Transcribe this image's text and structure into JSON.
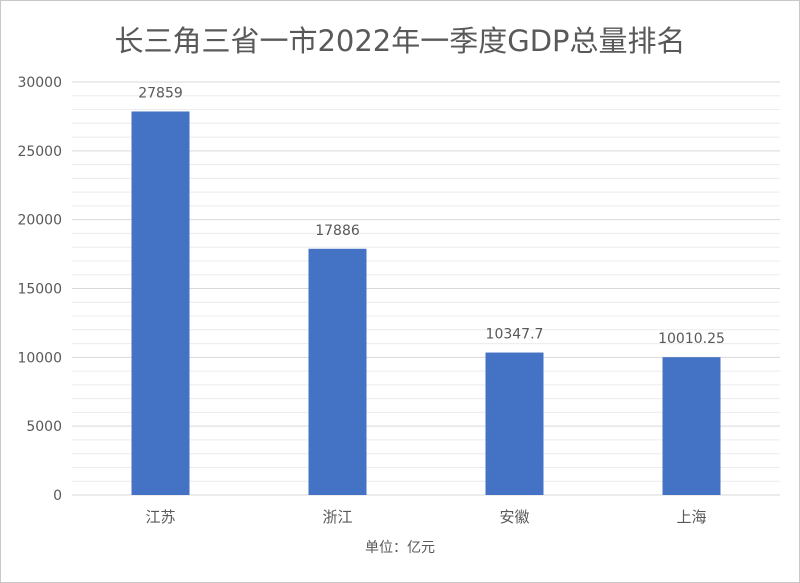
{
  "chart_data": {
    "type": "bar",
    "title": "长三角三省一市2022年一季度GDP总量排名",
    "xlabel": "单位：亿元",
    "ylabel": "",
    "categories": [
      "江苏",
      "浙江",
      "安徽",
      "上海"
    ],
    "values": [
      27859,
      17886,
      10347.7,
      10010.25
    ],
    "data_labels": [
      "27859",
      "17886",
      "10347.7",
      "10010.25"
    ],
    "ylim": [
      0,
      30000
    ],
    "yticks": [
      0,
      5000,
      10000,
      15000,
      20000,
      25000,
      30000
    ],
    "minor_grid_step": 1000,
    "grid": true,
    "legend": "none",
    "bar_color": "#4472C4"
  }
}
